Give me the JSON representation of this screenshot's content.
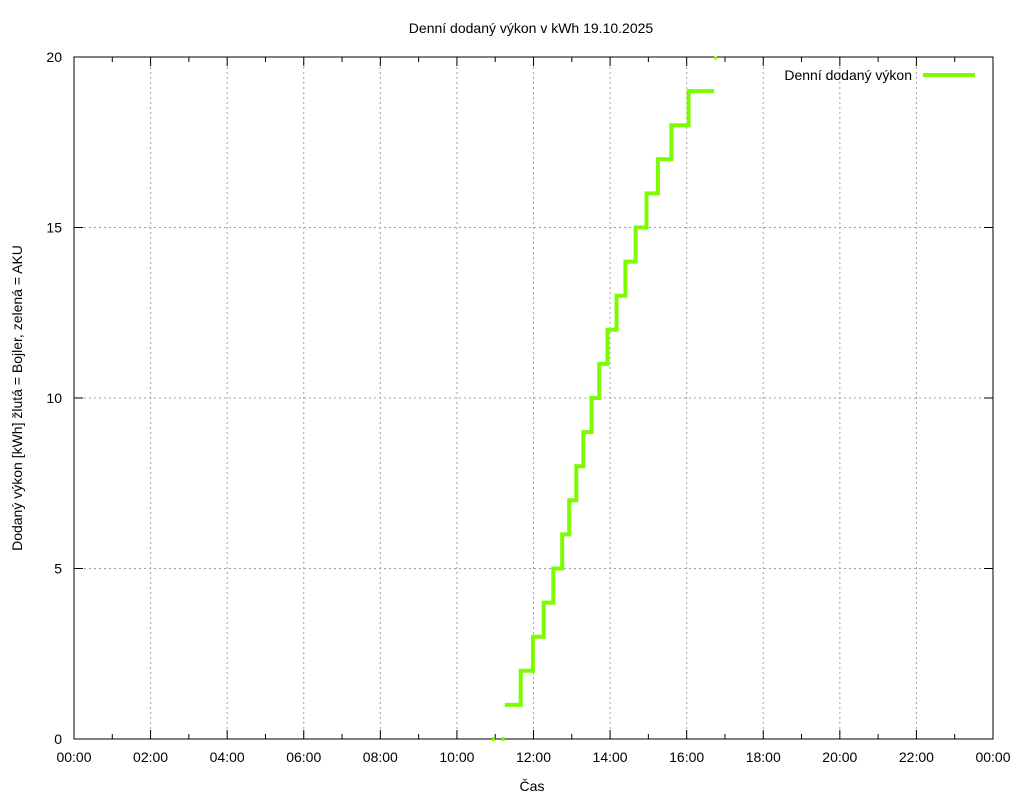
{
  "chart_data": {
    "type": "line",
    "step": true,
    "title": "Denní dodaný výkon v kWh 19.10.2025",
    "xlabel": "Čas",
    "ylabel": "Dodaný výkon [kWh]  žlutá = Bojler, zelená = AKU",
    "xlim": [
      "00:00",
      "24:00"
    ],
    "ylim": [
      0,
      20
    ],
    "x_ticks": [
      "00:00",
      "02:00",
      "04:00",
      "06:00",
      "08:00",
      "10:00",
      "12:00",
      "14:00",
      "16:00",
      "18:00",
      "20:00",
      "22:00",
      "00:00"
    ],
    "y_ticks": [
      0,
      5,
      10,
      15,
      20
    ],
    "grid": true,
    "legend": {
      "position": "top-right",
      "entries": [
        "Denní dodaný výkon"
      ]
    },
    "series": [
      {
        "name": "Denní dodaný výkon",
        "color": "#7cfc00",
        "points": [
          {
            "t": "10:55",
            "v": 0
          },
          {
            "t": "11:10",
            "v": 0
          },
          {
            "t": "11:15",
            "v": 1
          },
          {
            "t": "11:40",
            "v": 2
          },
          {
            "t": "11:59",
            "v": 3
          },
          {
            "t": "12:16",
            "v": 4
          },
          {
            "t": "12:31",
            "v": 5
          },
          {
            "t": "12:45",
            "v": 6
          },
          {
            "t": "12:56",
            "v": 7
          },
          {
            "t": "13:07",
            "v": 8
          },
          {
            "t": "13:18",
            "v": 9
          },
          {
            "t": "13:31",
            "v": 10
          },
          {
            "t": "13:43",
            "v": 11
          },
          {
            "t": "13:56",
            "v": 12
          },
          {
            "t": "14:10",
            "v": 13
          },
          {
            "t": "14:24",
            "v": 14
          },
          {
            "t": "14:40",
            "v": 15
          },
          {
            "t": "14:57",
            "v": 16
          },
          {
            "t": "15:15",
            "v": 17
          },
          {
            "t": "15:36",
            "v": 18
          },
          {
            "t": "16:03",
            "v": 19
          },
          {
            "t": "16:43",
            "v": 20
          }
        ]
      }
    ]
  }
}
